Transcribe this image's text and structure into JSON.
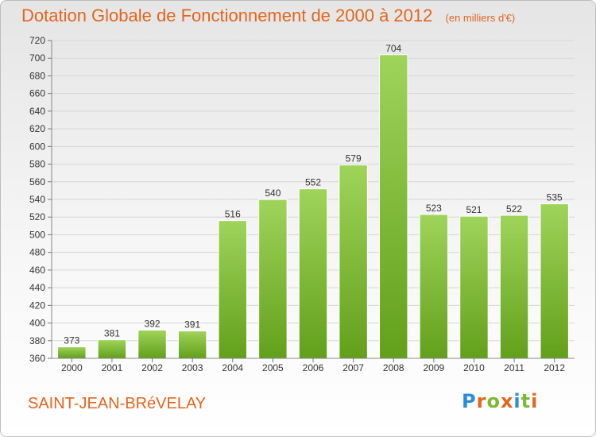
{
  "chart_data": {
    "type": "bar",
    "title": "Dotation Globale de Fonctionnement de 2000 à 2012",
    "subtitle": "(en milliers d'€)",
    "categories": [
      "2000",
      "2001",
      "2002",
      "2003",
      "2004",
      "2005",
      "2006",
      "2007",
      "2008",
      "2009",
      "2010",
      "2011",
      "2012"
    ],
    "values": [
      373,
      381,
      392,
      391,
      516,
      540,
      552,
      579,
      704,
      523,
      521,
      522,
      535
    ],
    "ylim": [
      360,
      720
    ],
    "yticks": [
      360,
      380,
      400,
      420,
      440,
      460,
      480,
      500,
      520,
      540,
      560,
      580,
      600,
      620,
      640,
      660,
      680,
      700,
      720
    ],
    "grid": true,
    "bar_color": "#7cba2f",
    "title_color": "#e2661e"
  },
  "footer": {
    "commune": "SAINT-JEAN-BRéVELAY"
  },
  "brand": {
    "letters": [
      "P",
      "r",
      "o",
      "x",
      "i",
      "t",
      "i"
    ],
    "colors": [
      "#2b8fd6",
      "#e2661e",
      "#7cba2f",
      "#e2661e",
      "#2b8fd6",
      "#7cba2f",
      "#e2661e"
    ]
  }
}
